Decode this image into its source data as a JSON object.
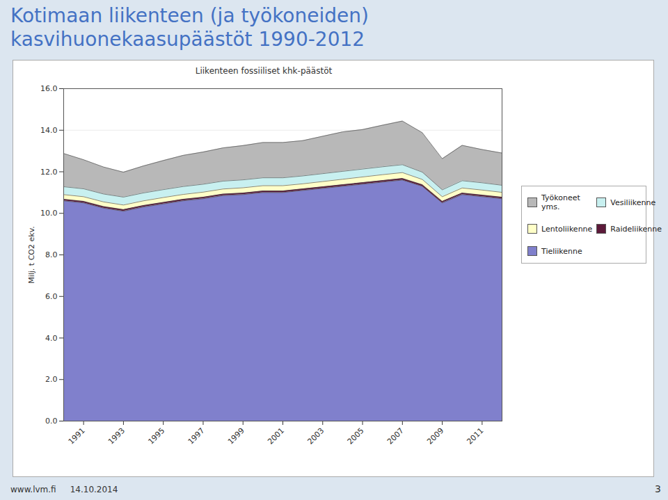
{
  "chart_data": {
    "type": "area",
    "stacked": true,
    "title": "Kotimaan liikenteen (ja työkoneiden)\nkasvihuonekaasupäästöt 1990-2012",
    "subtitle": "Liikenteen fossiiliset khk-päästöt",
    "ylabel": "Milj. t CO2 ekv.",
    "x": [
      1990,
      1991,
      1992,
      1993,
      1994,
      1995,
      1996,
      1997,
      1998,
      1999,
      2000,
      2001,
      2002,
      2003,
      2004,
      2005,
      2006,
      2007,
      2008,
      2009,
      2010,
      2011,
      2012
    ],
    "series": [
      {
        "name": "Tieliikenne",
        "color": "#8080CC",
        "values": [
          10.6,
          10.5,
          10.25,
          10.1,
          10.3,
          10.45,
          10.6,
          10.7,
          10.85,
          10.9,
          11.0,
          11.0,
          11.1,
          11.2,
          11.3,
          11.4,
          11.5,
          11.6,
          11.3,
          10.5,
          10.9,
          10.8,
          10.7
        ]
      },
      {
        "name": "Raideliikenne",
        "color": "#5C1A3A",
        "values": [
          0.08,
          0.08,
          0.08,
          0.08,
          0.08,
          0.08,
          0.08,
          0.08,
          0.08,
          0.08,
          0.08,
          0.08,
          0.08,
          0.08,
          0.08,
          0.08,
          0.08,
          0.08,
          0.08,
          0.08,
          0.08,
          0.08,
          0.08
        ]
      },
      {
        "name": "Lentoliikenne",
        "color": "#FFFFC8",
        "values": [
          0.22,
          0.22,
          0.22,
          0.22,
          0.22,
          0.23,
          0.23,
          0.24,
          0.24,
          0.25,
          0.25,
          0.25,
          0.24,
          0.25,
          0.26,
          0.27,
          0.28,
          0.28,
          0.25,
          0.22,
          0.24,
          0.24,
          0.23
        ]
      },
      {
        "name": "Vesiliikenne",
        "color": "#C8F0F0",
        "values": [
          0.38,
          0.38,
          0.38,
          0.38,
          0.38,
          0.38,
          0.38,
          0.38,
          0.38,
          0.38,
          0.38,
          0.38,
          0.38,
          0.38,
          0.38,
          0.38,
          0.38,
          0.38,
          0.35,
          0.33,
          0.35,
          0.35,
          0.34
        ]
      },
      {
        "name": "Työkoneet yms.",
        "color": "#B8B8B8",
        "values": [
          1.6,
          1.4,
          1.3,
          1.2,
          1.3,
          1.4,
          1.5,
          1.55,
          1.6,
          1.65,
          1.7,
          1.7,
          1.7,
          1.8,
          1.9,
          1.9,
          2.0,
          2.1,
          1.9,
          1.5,
          1.7,
          1.6,
          1.55
        ]
      }
    ],
    "xlim": [
      1990,
      2012
    ],
    "xticks": [
      1991,
      1993,
      1995,
      1997,
      1999,
      2001,
      2003,
      2005,
      2007,
      2009,
      2011
    ],
    "ylim": [
      0,
      16
    ],
    "yticks": [
      {
        "value": 0,
        "label": "0.0"
      },
      {
        "value": 2,
        "label": "2.0"
      },
      {
        "value": 4,
        "label": "4.0"
      },
      {
        "value": 6,
        "label": "6.0"
      },
      {
        "value": 8,
        "label": "8.0"
      },
      {
        "value": 10,
        "label": "10.0"
      },
      {
        "value": 12,
        "label": "12.0"
      },
      {
        "value": 14,
        "label": "14.0"
      },
      {
        "value": 16,
        "label": "16.0"
      }
    ],
    "grid": true,
    "legend": "right",
    "annotations": [
      "www.lvm.fi",
      "14.10.2014",
      "3"
    ]
  }
}
